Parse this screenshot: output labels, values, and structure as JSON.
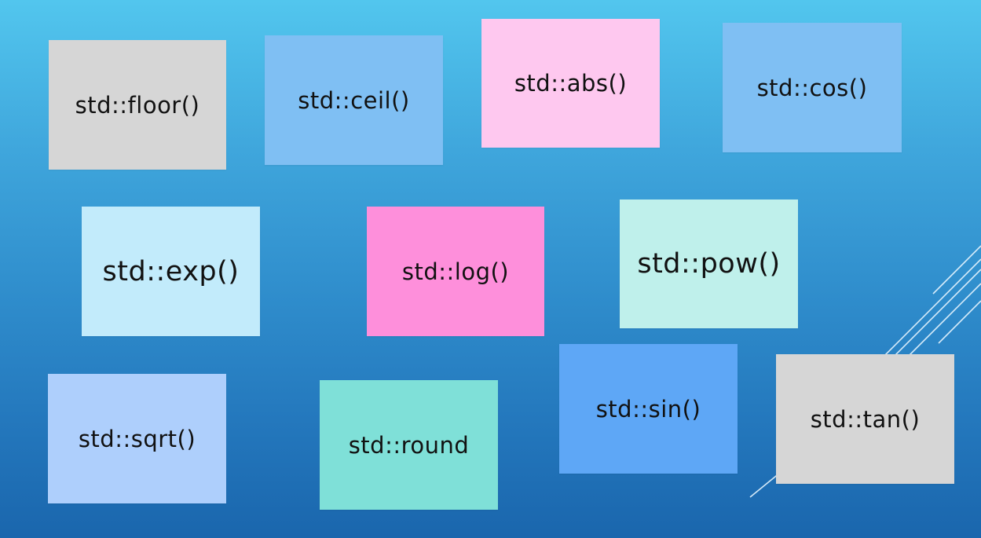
{
  "slide": {
    "cards": {
      "floor": "std::floor()",
      "ceil": "std::ceil()",
      "abs": "std::abs()",
      "cos": "std::cos()",
      "exp": "std::exp()",
      "log": "std::log()",
      "pow": "std::pow()",
      "sqrt": "std::sqrt()",
      "round": "std::round",
      "sin": "std::sin()",
      "tan": "std::tan()"
    },
    "colors": {
      "gray": "#d6d6d6",
      "blue": "#7fbff3",
      "pink": "#fec8ef",
      "light_cyan": "#c2ebfb",
      "hot_pink": "#fe8fdb",
      "mint": "#bff0eb",
      "periwinkle": "#aecffc",
      "teal": "#7fe0d8",
      "bright_blue": "#5ea7f6"
    }
  }
}
